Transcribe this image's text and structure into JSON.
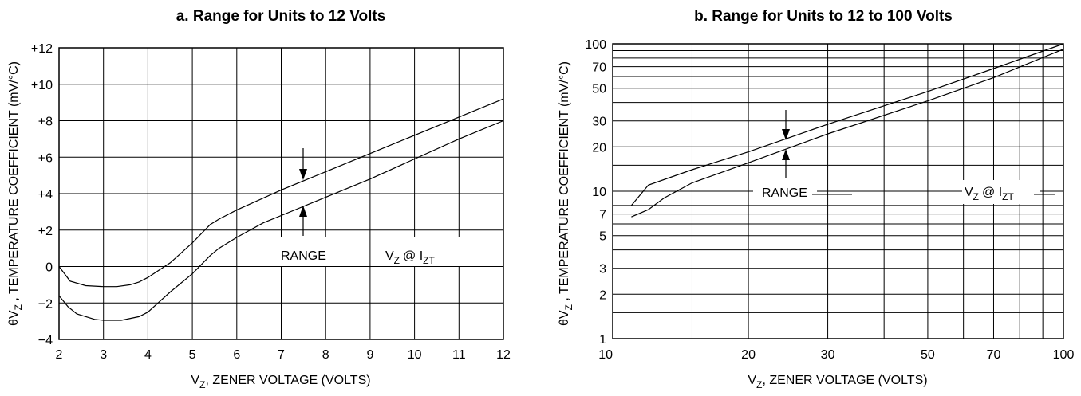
{
  "charts": [
    {
      "title": "a. Range for Units to 12 Volts",
      "chart_data": {
        "type": "line",
        "title": "a. Range for Units to 12 Volts",
        "xlabel": "VZ, ZENER VOLTAGE (VOLTS)",
        "ylabel": "θVZ , TEMPERATURE COEFFICIENT (mV/°C)",
        "xlim": [
          2,
          12
        ],
        "ylim": [
          -4,
          12
        ],
        "x_scale": "linear",
        "y_scale": "linear",
        "grid": true,
        "x_ticks": [
          2,
          3,
          4,
          5,
          6,
          7,
          8,
          9,
          10,
          11,
          12
        ],
        "y_ticks": [
          -4,
          -2,
          0,
          2,
          4,
          6,
          8,
          10,
          12
        ],
        "x_tick_labels": [
          "2",
          "3",
          "4",
          "5",
          "6",
          "7",
          "8",
          "9",
          "10",
          "11",
          "12"
        ],
        "y_tick_labels": [
          "−4",
          "−2",
          "0",
          "+2",
          "+4",
          "+6",
          "+8",
          "+10",
          "+12"
        ],
        "series": [
          {
            "points": [
              [
                2.0,
                0.0
              ],
              [
                2.25,
                -0.8
              ],
              [
                2.6,
                -1.05
              ],
              [
                3.0,
                -1.1
              ],
              [
                3.3,
                -1.1
              ],
              [
                3.6,
                -1.0
              ],
              [
                3.8,
                -0.85
              ],
              [
                4.0,
                -0.6
              ],
              [
                4.5,
                0.2
              ],
              [
                5.0,
                1.3
              ],
              [
                5.4,
                2.3
              ],
              [
                5.6,
                2.6
              ],
              [
                6.0,
                3.1
              ],
              [
                7.0,
                4.2
              ],
              [
                8.0,
                5.2
              ],
              [
                9.0,
                6.2
              ],
              [
                10.0,
                7.2
              ],
              [
                11.0,
                8.2
              ],
              [
                12.0,
                9.2
              ]
            ]
          },
          {
            "points": [
              [
                2.0,
                -1.6
              ],
              [
                2.2,
                -2.2
              ],
              [
                2.4,
                -2.6
              ],
              [
                2.8,
                -2.9
              ],
              [
                3.0,
                -2.95
              ],
              [
                3.4,
                -2.95
              ],
              [
                3.8,
                -2.75
              ],
              [
                4.0,
                -2.5
              ],
              [
                4.5,
                -1.4
              ],
              [
                5.0,
                -0.4
              ],
              [
                5.4,
                0.6
              ],
              [
                5.6,
                1.0
              ],
              [
                6.0,
                1.6
              ],
              [
                6.6,
                2.4
              ],
              [
                7.0,
                2.8
              ],
              [
                8.0,
                3.8
              ],
              [
                9.0,
                4.8
              ],
              [
                10.0,
                5.9
              ],
              [
                11.0,
                7.0
              ],
              [
                12.0,
                8.0
              ]
            ]
          }
        ],
        "annotations": {
          "range_label": "RANGE",
          "condition_main": "V",
          "condition_sub1": "Z",
          "condition_at": "@ I",
          "condition_sub2": "ZT"
        }
      }
    },
    {
      "title": "b. Range for Units to 12 to 100 Volts",
      "chart_data": {
        "type": "line",
        "title": "b. Range for Units to 12 to 100 Volts",
        "xlabel": "VZ, ZENER VOLTAGE (VOLTS)",
        "ylabel": "θVZ , TEMPERATURE COEFFICIENT (mV/°C)",
        "xlim": [
          10,
          100
        ],
        "ylim": [
          1,
          100
        ],
        "x_scale": "log",
        "y_scale": "log",
        "grid": true,
        "x_ticks": [
          10,
          20,
          30,
          50,
          70,
          100
        ],
        "y_ticks": [
          1,
          2,
          3,
          5,
          7,
          10,
          20,
          30,
          50,
          70,
          100
        ],
        "x_tick_labels": [
          "10",
          "20",
          "30",
          "50",
          "70",
          "100"
        ],
        "y_tick_labels": [
          "1",
          "2",
          "3",
          "5",
          "7",
          "10",
          "20",
          "30",
          "50",
          "70",
          "100"
        ],
        "series": [
          {
            "points": [
              [
                11,
                8
              ],
              [
                12,
                11
              ],
              [
                15,
                14
              ],
              [
                20,
                18.5
              ],
              [
                30,
                28.5
              ],
              [
                50,
                47.5
              ],
              [
                70,
                68
              ],
              [
                100,
                110
              ]
            ]
          },
          {
            "points": [
              [
                11,
                6.7
              ],
              [
                12,
                7.5
              ],
              [
                13,
                9
              ],
              [
                15,
                11.4
              ],
              [
                20,
                15.6
              ],
              [
                30,
                24.5
              ],
              [
                50,
                41
              ],
              [
                70,
                59
              ],
              [
                100,
                92
              ]
            ]
          }
        ],
        "annotations": {
          "range_label": "RANGE",
          "condition_main": "V",
          "condition_sub1": "Z",
          "condition_at": "@ I",
          "condition_sub2": "ZT"
        }
      }
    }
  ]
}
